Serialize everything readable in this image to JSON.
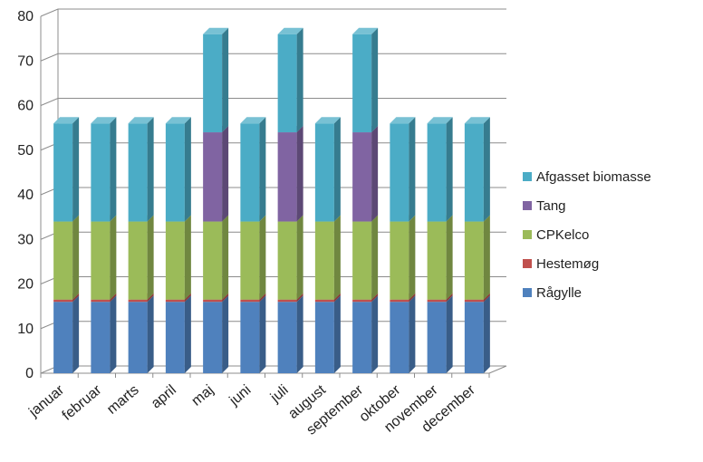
{
  "chart_data": {
    "type": "bar",
    "stacked": true,
    "three_d": true,
    "title": "",
    "xlabel": "",
    "ylabel": "",
    "ylim": [
      0,
      80
    ],
    "yticks": [
      0,
      10,
      20,
      30,
      40,
      50,
      60,
      70,
      80
    ],
    "grid": true,
    "legend_position": "right",
    "categories": [
      "januar",
      "februar",
      "marts",
      "april",
      "maj",
      "juni",
      "juli",
      "august",
      "september",
      "oktober",
      "november",
      "december"
    ],
    "series": [
      {
        "name": "Rågylle",
        "color": "#4f81bd",
        "values": [
          16,
          16,
          16,
          16,
          16,
          16,
          16,
          16,
          16,
          16,
          16,
          16
        ]
      },
      {
        "name": "Hestemøg",
        "color": "#c0504d",
        "values": [
          0.5,
          0.5,
          0.5,
          0.5,
          0.5,
          0.5,
          0.5,
          0.5,
          0.5,
          0.5,
          0.5,
          0.5
        ]
      },
      {
        "name": "CPKelco",
        "color": "#9bbb59",
        "values": [
          17.5,
          17.5,
          17.5,
          17.5,
          17.5,
          17.5,
          17.5,
          17.5,
          17.5,
          17.5,
          17.5,
          17.5
        ]
      },
      {
        "name": "Tang",
        "color": "#8064a2",
        "values": [
          0,
          0,
          0,
          0,
          20,
          0,
          20,
          0,
          20,
          0,
          0,
          0
        ]
      },
      {
        "name": "Afgasset biomasse",
        "color": "#4bacc6",
        "values": [
          22,
          22,
          22,
          22,
          22,
          22,
          22,
          22,
          22,
          22,
          22,
          22
        ]
      }
    ]
  }
}
